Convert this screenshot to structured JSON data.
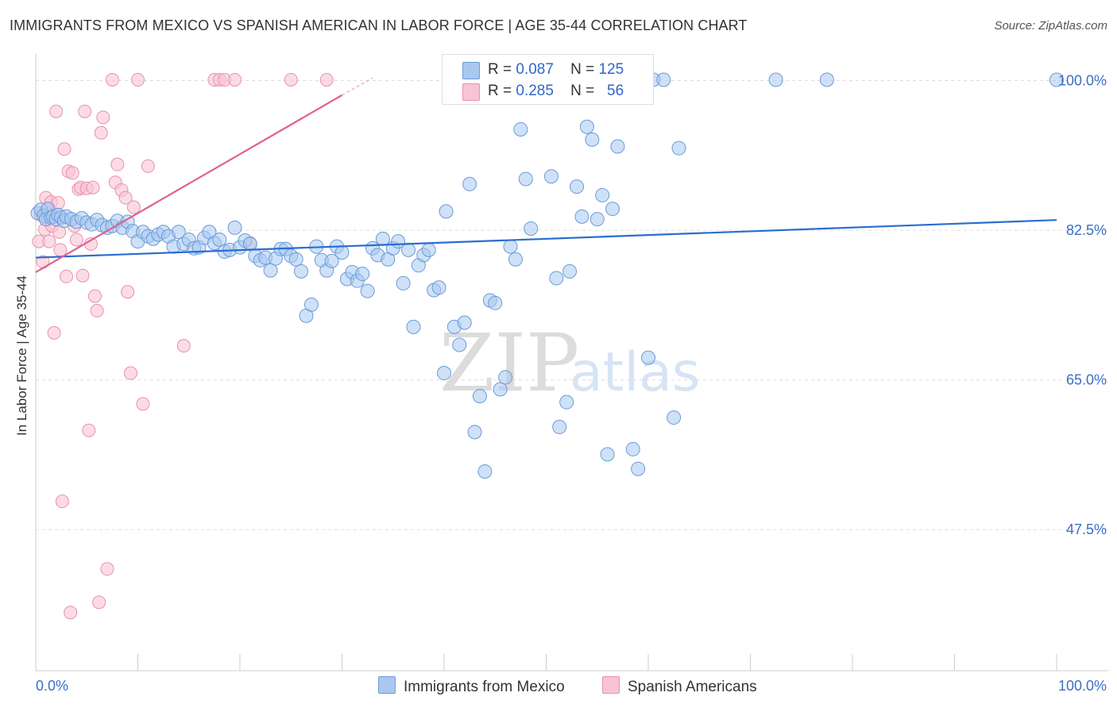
{
  "header": {
    "title": "IMMIGRANTS FROM MEXICO VS SPANISH AMERICAN IN LABOR FORCE | AGE 35-44 CORRELATION CHART",
    "source": "Source: ZipAtlas.com"
  },
  "watermark": {
    "zip": "ZIP",
    "atlas": "atlas"
  },
  "legend_top": [
    {
      "r_label": "R =",
      "r_value": "0.087",
      "n_label": "N =",
      "n_value": "125",
      "color": "#a8c8f0"
    },
    {
      "r_label": "R =",
      "r_value": "0.285",
      "n_label": "N =",
      "n_value": "56",
      "color": "#f8b8cc"
    }
  ],
  "colors": {
    "blue_fill": "#a8c8f0",
    "blue_stroke": "#6b9bd8",
    "blue_line": "#2a6dd0",
    "pink_fill": "#f8c4d4",
    "pink_stroke": "#ea8fae",
    "pink_line": "#e06090",
    "tick_label": "#3a6fc8",
    "grid": "#dddddd"
  },
  "chart_data": {
    "type": "scatter",
    "title": "IMMIGRANTS FROM MEXICO VS SPANISH AMERICAN IN LABOR FORCE | AGE 35-44 CORRELATION CHART",
    "xlabel": "",
    "ylabel": "In Labor Force | Age 35-44",
    "xlim": [
      0,
      100
    ],
    "ylim": [
      31,
      102
    ],
    "x_tick_labels": [
      "0.0%",
      "100.0%"
    ],
    "y_ticks": [
      47.5,
      65.0,
      82.5,
      100.0
    ],
    "y_tick_labels": [
      "47.5%",
      "65.0%",
      "82.5%",
      "100.0%"
    ],
    "grid": true,
    "legend_placement": "bottom",
    "series": [
      {
        "name": "Immigrants from Mexico",
        "trend": [
          [
            0,
            79.3
          ],
          [
            100,
            83.7
          ]
        ],
        "points": [
          [
            0.2,
            84.5
          ],
          [
            0.5,
            84.9
          ],
          [
            0.8,
            84.2
          ],
          [
            1.0,
            83.8
          ],
          [
            1.2,
            85.0
          ],
          [
            1.5,
            84.0
          ],
          [
            1.7,
            84.1
          ],
          [
            2.0,
            83.8
          ],
          [
            2.2,
            84.3
          ],
          [
            2.5,
            84.0
          ],
          [
            2.8,
            83.6
          ],
          [
            3.0,
            84.1
          ],
          [
            3.5,
            83.8
          ],
          [
            4.0,
            83.5
          ],
          [
            4.5,
            83.9
          ],
          [
            5.0,
            83.4
          ],
          [
            5.5,
            83.2
          ],
          [
            6.0,
            83.7
          ],
          [
            6.5,
            83.1
          ],
          [
            7.0,
            82.8
          ],
          [
            7.5,
            83.0
          ],
          [
            8.0,
            83.6
          ],
          [
            8.5,
            82.8
          ],
          [
            9.0,
            83.5
          ],
          [
            9.5,
            82.4
          ],
          [
            10.0,
            81.2
          ],
          [
            10.5,
            82.3
          ],
          [
            11.0,
            81.8
          ],
          [
            11.5,
            81.5
          ],
          [
            12.0,
            82.0
          ],
          [
            12.5,
            82.3
          ],
          [
            13.0,
            81.8
          ],
          [
            13.5,
            80.6
          ],
          [
            14.0,
            82.3
          ],
          [
            14.5,
            80.9
          ],
          [
            15.0,
            81.4
          ],
          [
            15.5,
            80.4
          ],
          [
            16.0,
            80.5
          ],
          [
            16.5,
            81.6
          ],
          [
            17.0,
            82.3
          ],
          [
            17.5,
            81.0
          ],
          [
            18.0,
            81.4
          ],
          [
            18.5,
            80.0
          ],
          [
            19.0,
            80.2
          ],
          [
            19.5,
            82.8
          ],
          [
            20.0,
            80.5
          ],
          [
            20.5,
            81.3
          ],
          [
            21.0,
            80.9
          ],
          [
            21.5,
            79.5
          ],
          [
            22.0,
            79.0
          ],
          [
            22.5,
            79.3
          ],
          [
            23.0,
            77.8
          ],
          [
            23.5,
            79.2
          ],
          [
            24.0,
            80.3
          ],
          [
            24.5,
            80.3
          ],
          [
            25.0,
            79.5
          ],
          [
            25.5,
            79.1
          ],
          [
            26.0,
            77.7
          ],
          [
            26.5,
            72.5
          ],
          [
            27.0,
            73.8
          ],
          [
            27.5,
            80.6
          ],
          [
            28.0,
            79.0
          ],
          [
            28.5,
            77.8
          ],
          [
            29.0,
            78.9
          ],
          [
            29.5,
            80.6
          ],
          [
            30.0,
            79.9
          ],
          [
            30.5,
            76.8
          ],
          [
            31.0,
            77.6
          ],
          [
            31.5,
            76.6
          ],
          [
            32.0,
            77.4
          ],
          [
            32.5,
            75.4
          ],
          [
            33.0,
            80.4
          ],
          [
            33.5,
            79.6
          ],
          [
            34.0,
            81.5
          ],
          [
            34.5,
            79.1
          ],
          [
            35.0,
            80.4
          ],
          [
            35.5,
            81.2
          ],
          [
            36.0,
            76.3
          ],
          [
            36.5,
            80.2
          ],
          [
            37.0,
            71.2
          ],
          [
            37.5,
            78.4
          ],
          [
            38.0,
            79.6
          ],
          [
            38.5,
            80.2
          ],
          [
            39.0,
            75.5
          ],
          [
            39.5,
            75.8
          ],
          [
            40.0,
            65.8
          ],
          [
            40.2,
            84.7
          ],
          [
            41.0,
            71.2
          ],
          [
            41.5,
            69.1
          ],
          [
            42.0,
            71.7
          ],
          [
            42.5,
            87.9
          ],
          [
            43.0,
            58.9
          ],
          [
            43.5,
            63.1
          ],
          [
            44.0,
            54.3
          ],
          [
            44.5,
            74.3
          ],
          [
            45.0,
            74.0
          ],
          [
            45.5,
            63.9
          ],
          [
            46.0,
            65.3
          ],
          [
            46.5,
            80.6
          ],
          [
            47.0,
            79.1
          ],
          [
            47.5,
            94.3
          ],
          [
            48.0,
            88.5
          ],
          [
            48.5,
            82.7
          ],
          [
            49.0,
            100.1
          ],
          [
            49.5,
            99.6
          ],
          [
            50.0,
            98.5
          ],
          [
            50.5,
            88.8
          ],
          [
            51.0,
            76.9
          ],
          [
            51.3,
            59.5
          ],
          [
            52.0,
            62.4
          ],
          [
            52.3,
            77.7
          ],
          [
            53.0,
            87.6
          ],
          [
            53.5,
            84.1
          ],
          [
            54.0,
            94.6
          ],
          [
            54.5,
            93.1
          ],
          [
            55.0,
            83.8
          ],
          [
            55.5,
            86.6
          ],
          [
            56.0,
            56.3
          ],
          [
            56.5,
            85.0
          ],
          [
            57.0,
            92.3
          ],
          [
            58.5,
            56.9
          ],
          [
            59.0,
            54.6
          ],
          [
            60.0,
            67.6
          ],
          [
            60.5,
            100.1
          ],
          [
            61.5,
            100.1
          ],
          [
            62.5,
            60.6
          ],
          [
            63.0,
            92.1
          ],
          [
            72.5,
            100.1
          ],
          [
            77.5,
            100.1
          ],
          [
            100.0,
            100.1
          ]
        ]
      },
      {
        "name": "Spanish Americans",
        "trend": [
          [
            0,
            77.6
          ],
          [
            30,
            98.3
          ]
        ],
        "trend_dashed": [
          [
            30,
            98.3
          ],
          [
            33,
            100.3
          ]
        ],
        "points": [
          [
            0.3,
            81.2
          ],
          [
            0.5,
            84.3
          ],
          [
            0.7,
            78.8
          ],
          [
            0.9,
            82.6
          ],
          [
            1.0,
            86.3
          ],
          [
            1.1,
            84.9
          ],
          [
            1.2,
            84.4
          ],
          [
            1.3,
            81.2
          ],
          [
            1.5,
            85.8
          ],
          [
            1.6,
            83.0
          ],
          [
            1.8,
            70.5
          ],
          [
            2.0,
            96.4
          ],
          [
            2.2,
            85.7
          ],
          [
            2.3,
            82.3
          ],
          [
            2.4,
            80.2
          ],
          [
            2.6,
            50.8
          ],
          [
            2.8,
            92.0
          ],
          [
            3.0,
            77.1
          ],
          [
            3.2,
            89.4
          ],
          [
            3.4,
            37.8
          ],
          [
            3.6,
            89.2
          ],
          [
            3.8,
            83.0
          ],
          [
            4.0,
            81.4
          ],
          [
            4.2,
            87.3
          ],
          [
            4.4,
            87.5
          ],
          [
            4.6,
            77.2
          ],
          [
            4.8,
            96.4
          ],
          [
            5.0,
            87.4
          ],
          [
            5.2,
            59.1
          ],
          [
            5.4,
            80.9
          ],
          [
            5.6,
            87.5
          ],
          [
            5.8,
            74.8
          ],
          [
            6.0,
            73.1
          ],
          [
            6.2,
            39.0
          ],
          [
            6.4,
            93.9
          ],
          [
            6.6,
            95.7
          ],
          [
            7.0,
            42.9
          ],
          [
            7.5,
            100.1
          ],
          [
            7.8,
            88.1
          ],
          [
            8.0,
            90.2
          ],
          [
            8.4,
            87.2
          ],
          [
            8.8,
            86.3
          ],
          [
            9.0,
            75.3
          ],
          [
            9.3,
            65.8
          ],
          [
            9.6,
            85.2
          ],
          [
            10.0,
            100.1
          ],
          [
            10.5,
            62.2
          ],
          [
            11.0,
            90.0
          ],
          [
            14.5,
            69.0
          ],
          [
            17.5,
            100.1
          ],
          [
            18.0,
            100.1
          ],
          [
            18.5,
            100.1
          ],
          [
            19.5,
            100.1
          ],
          [
            21.0,
            81.0
          ],
          [
            25.0,
            100.1
          ],
          [
            28.5,
            100.1
          ]
        ]
      }
    ]
  },
  "bottom_legend": [
    {
      "label": "Immigrants from Mexico",
      "color": "#a8c8f0"
    },
    {
      "label": "Spanish Americans",
      "color": "#f8c4d4"
    }
  ]
}
